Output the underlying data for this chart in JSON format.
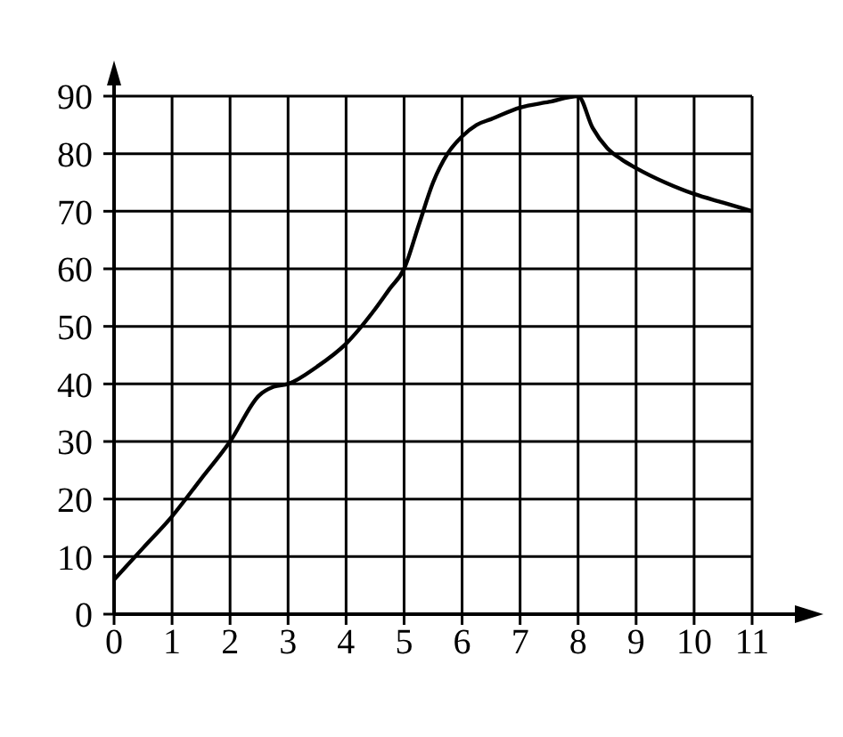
{
  "chart_data": {
    "type": "line",
    "x": [
      0,
      0.5,
      1,
      1.5,
      2,
      2.5,
      2.75,
      3,
      3.5,
      4,
      4.5,
      4.75,
      5,
      5.25,
      5.5,
      5.75,
      6,
      6.25,
      6.5,
      7,
      7.5,
      8,
      8.25,
      8.5,
      8.75,
      9,
      9.5,
      10,
      10.5,
      11
    ],
    "series": [
      {
        "color": "#000000",
        "values": [
          6,
          11.5,
          17,
          23.5,
          30,
          38,
          39.5,
          40,
          43,
          47,
          53,
          56.5,
          60,
          67.5,
          75,
          80,
          83,
          85,
          86,
          88,
          89,
          90,
          84.5,
          81,
          79,
          77.5,
          75,
          73,
          71.5,
          70
        ]
      }
    ],
    "xlim": [
      0,
      11
    ],
    "xticks": [
      0,
      1,
      2,
      3,
      4,
      5,
      6,
      7,
      8,
      9,
      10,
      11
    ],
    "ylim": [
      0,
      90
    ],
    "yticks": [
      0,
      10,
      20,
      30,
      40,
      50,
      60,
      70,
      80,
      90
    ],
    "grid": true,
    "line_style": "solid"
  }
}
